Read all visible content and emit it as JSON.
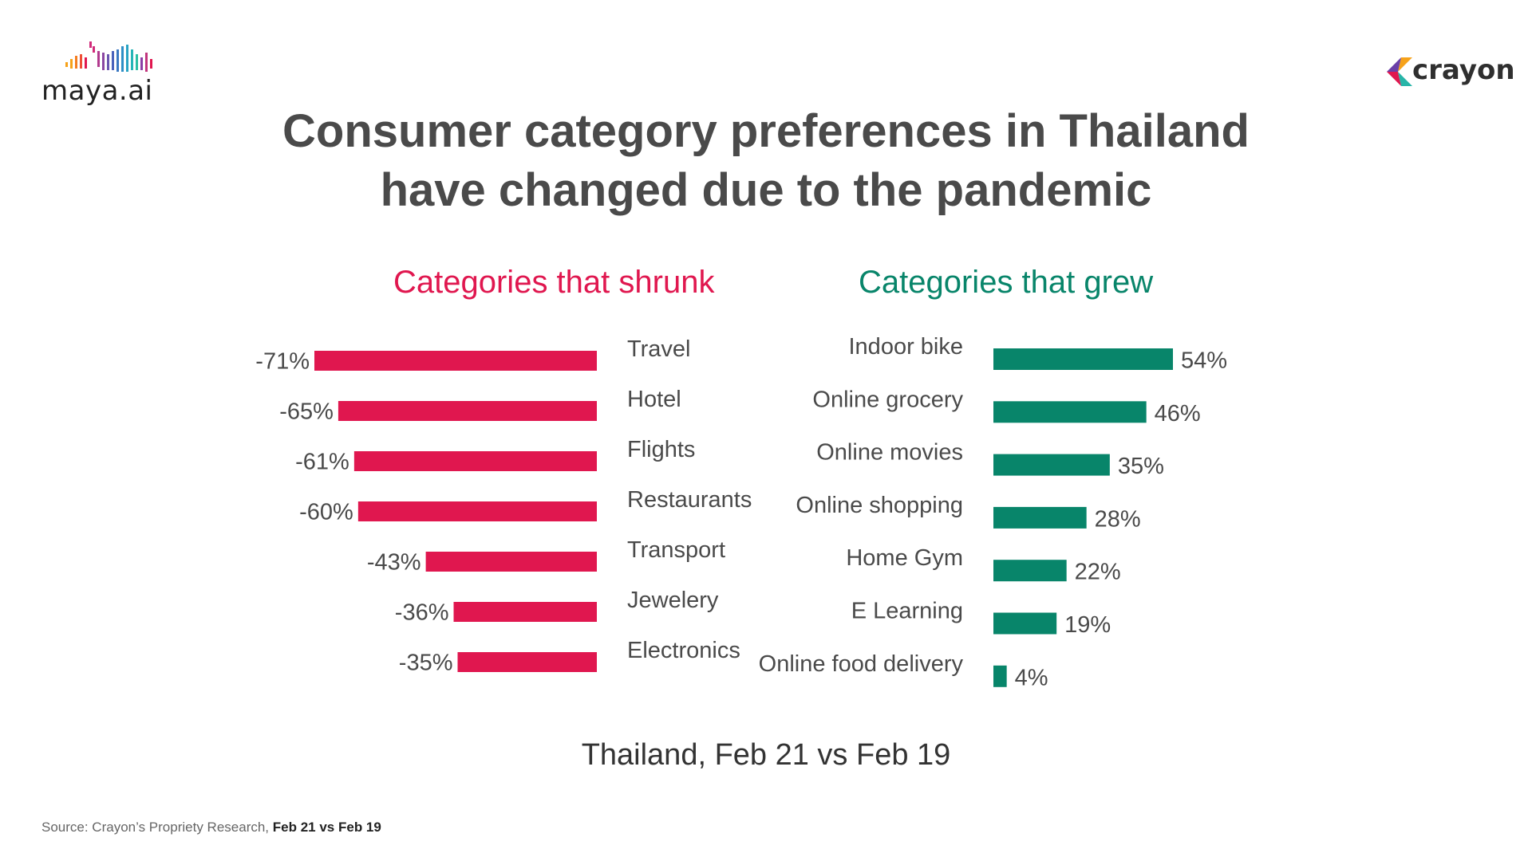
{
  "header": {
    "title_line1": "Consumer category preferences in Thailand",
    "title_line2": "have changed due to the pandemic"
  },
  "logos": {
    "left": "maya.ai",
    "right": "crayon"
  },
  "colors": {
    "shrunk": "#e0174f",
    "grew": "#08856a",
    "text": "#4a4a4a"
  },
  "chart_data": [
    {
      "type": "bar",
      "orientation": "horizontal",
      "title": "Categories that shrunk",
      "categories": [
        "Travel",
        "Hotel",
        "Flights",
        "Restaurants",
        "Transport",
        "Jewelery",
        "Electronics"
      ],
      "values": [
        -71,
        -65,
        -61,
        -60,
        -43,
        -36,
        -35
      ],
      "value_labels": [
        "-71%",
        "-65%",
        "-61%",
        "-60%",
        "-43%",
        "-36%",
        "-35%"
      ],
      "unit": "%",
      "color": "#e0174f",
      "xlim": [
        -71,
        0
      ]
    },
    {
      "type": "bar",
      "orientation": "horizontal",
      "title": "Categories that grew",
      "categories": [
        "Indoor bike",
        "Online grocery",
        "Online movies",
        "Online shopping",
        "Home Gym",
        "E Learning",
        "Online food delivery"
      ],
      "values": [
        54,
        46,
        35,
        28,
        22,
        19,
        4
      ],
      "value_labels": [
        "54%",
        "46%",
        "35%",
        "28%",
        "22%",
        "19%",
        "4%"
      ],
      "unit": "%",
      "color": "#08856a",
      "xlim": [
        0,
        54
      ]
    }
  ],
  "footer": {
    "caption": "Thailand, Feb 21 vs Feb 19",
    "source_prefix": "Source: Crayon’s Propriety Research, ",
    "source_period": "Feb 21 vs Feb 19"
  }
}
